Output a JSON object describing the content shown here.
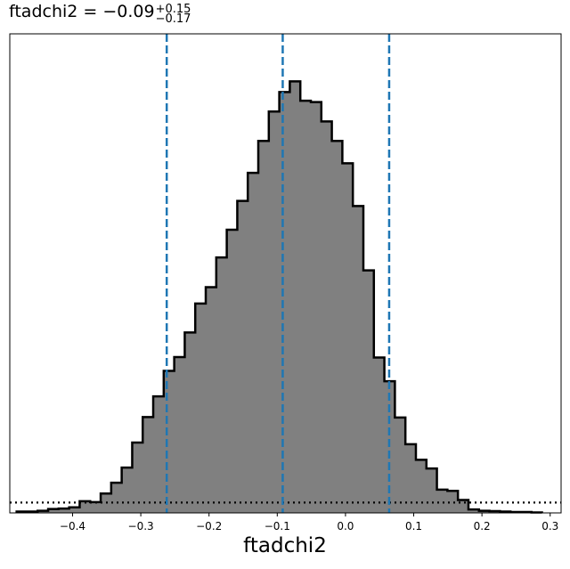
{
  "title": {
    "param": "ftadchi2",
    "value_text": "= −0.09",
    "plus": "+0.15",
    "minus": "−0.17"
  },
  "chart_data": {
    "type": "histogram",
    "xlabel": "ftadchi2",
    "ylabel": "",
    "xlim": [
      -0.492,
      0.316
    ],
    "ylim": [
      0,
      1.11
    ],
    "x_ticks": [
      -0.4,
      -0.3,
      -0.2,
      -0.1,
      0.0,
      0.1,
      0.2,
      0.3
    ],
    "x_tick_labels": [
      "−0.4",
      "−0.3",
      "−0.2",
      "−0.1",
      "0.0",
      "0.1",
      "0.2",
      "0.3"
    ],
    "y_ticks_shown": false,
    "grid": false,
    "bin_edges": [
      -0.482,
      -0.4666,
      -0.4512,
      -0.4358,
      -0.4204,
      -0.405,
      -0.3896,
      -0.3742,
      -0.3588,
      -0.3434,
      -0.328,
      -0.3126,
      -0.2972,
      -0.2818,
      -0.2664,
      -0.251,
      -0.2356,
      -0.2202,
      -0.2048,
      -0.1894,
      -0.174,
      -0.1586,
      -0.1432,
      -0.1278,
      -0.1124,
      -0.097,
      -0.0816,
      -0.0662,
      -0.0508,
      -0.0354,
      -0.02,
      -0.0046,
      0.0108,
      0.0262,
      0.0416,
      0.057,
      0.0724,
      0.0878,
      0.1032,
      0.1186,
      0.134,
      0.1494,
      0.1648,
      0.1802,
      0.1956,
      0.211,
      0.2264,
      0.2418,
      0.2572,
      0.2726,
      0.288
    ],
    "counts": [
      0.003,
      0.003,
      0.005,
      0.009,
      0.01,
      0.013,
      0.027,
      0.025,
      0.045,
      0.07,
      0.105,
      0.163,
      0.222,
      0.27,
      0.329,
      0.361,
      0.418,
      0.485,
      0.523,
      0.592,
      0.656,
      0.723,
      0.788,
      0.862,
      0.93,
      0.975,
      1.0,
      0.955,
      0.952,
      0.907,
      0.862,
      0.81,
      0.711,
      0.562,
      0.36,
      0.305,
      0.221,
      0.159,
      0.123,
      0.103,
      0.054,
      0.051,
      0.03,
      0.008,
      0.005,
      0.004,
      0.003,
      0.002,
      0.002,
      0.001
    ],
    "fill_color": "#808080",
    "edge_color": "#000000",
    "vlines": [
      {
        "x": -0.262,
        "style": "dashed",
        "color": "#1f77b4"
      },
      {
        "x": -0.092,
        "style": "dashed",
        "color": "#1f77b4"
      },
      {
        "x": 0.064,
        "style": "dashed",
        "color": "#1f77b4"
      }
    ],
    "hline": {
      "y": 0.024,
      "style": "dotted",
      "color": "#000000"
    }
  }
}
